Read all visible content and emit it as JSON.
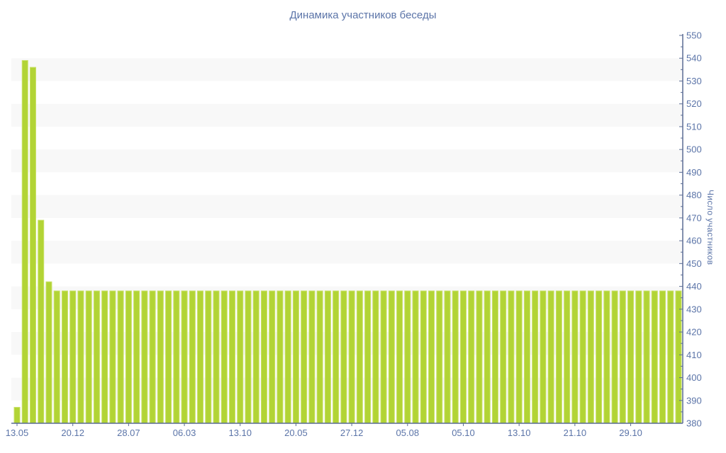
{
  "chart_data": {
    "type": "bar",
    "title": "Динамика участников беседы",
    "ylabel": "Число участников",
    "xlabel": "",
    "ylim": [
      380,
      550
    ],
    "ytick_step": 10,
    "ytick_minor_step": 5,
    "x_label_every": 7,
    "x_labels": [
      "13.05",
      "20.12",
      "28.07",
      "06.03",
      "13.10",
      "20.05",
      "27.12",
      "05.08",
      "05.10",
      "13.10",
      "21.10",
      "29.10"
    ],
    "values": [
      387,
      539,
      536,
      469,
      442,
      438,
      438,
      438,
      438,
      438,
      438,
      438,
      438,
      438,
      438,
      438,
      438,
      438,
      438,
      438,
      438,
      438,
      438,
      438,
      438,
      438,
      438,
      438,
      438,
      438,
      438,
      438,
      438,
      438,
      438,
      438,
      438,
      438,
      438,
      438,
      438,
      438,
      438,
      438,
      438,
      438,
      438,
      438,
      438,
      438,
      438,
      438,
      438,
      438,
      438,
      438,
      438,
      438,
      438,
      438,
      438,
      438,
      438,
      438,
      438,
      438,
      438,
      438,
      438,
      438,
      438,
      438,
      438,
      438,
      438,
      438,
      438,
      438,
      438,
      438,
      438,
      438,
      438,
      438
    ],
    "bar_color": "#b2d435",
    "bar_edge_color": "#c9e168",
    "text_color": "#5b74a8",
    "axis_color": "#5a6b94",
    "band_color": "#f8f8f8",
    "background_color": "#ffffff",
    "grid": "alternating-horizontal-bands",
    "legend": "none",
    "y_axis_side": "right"
  }
}
